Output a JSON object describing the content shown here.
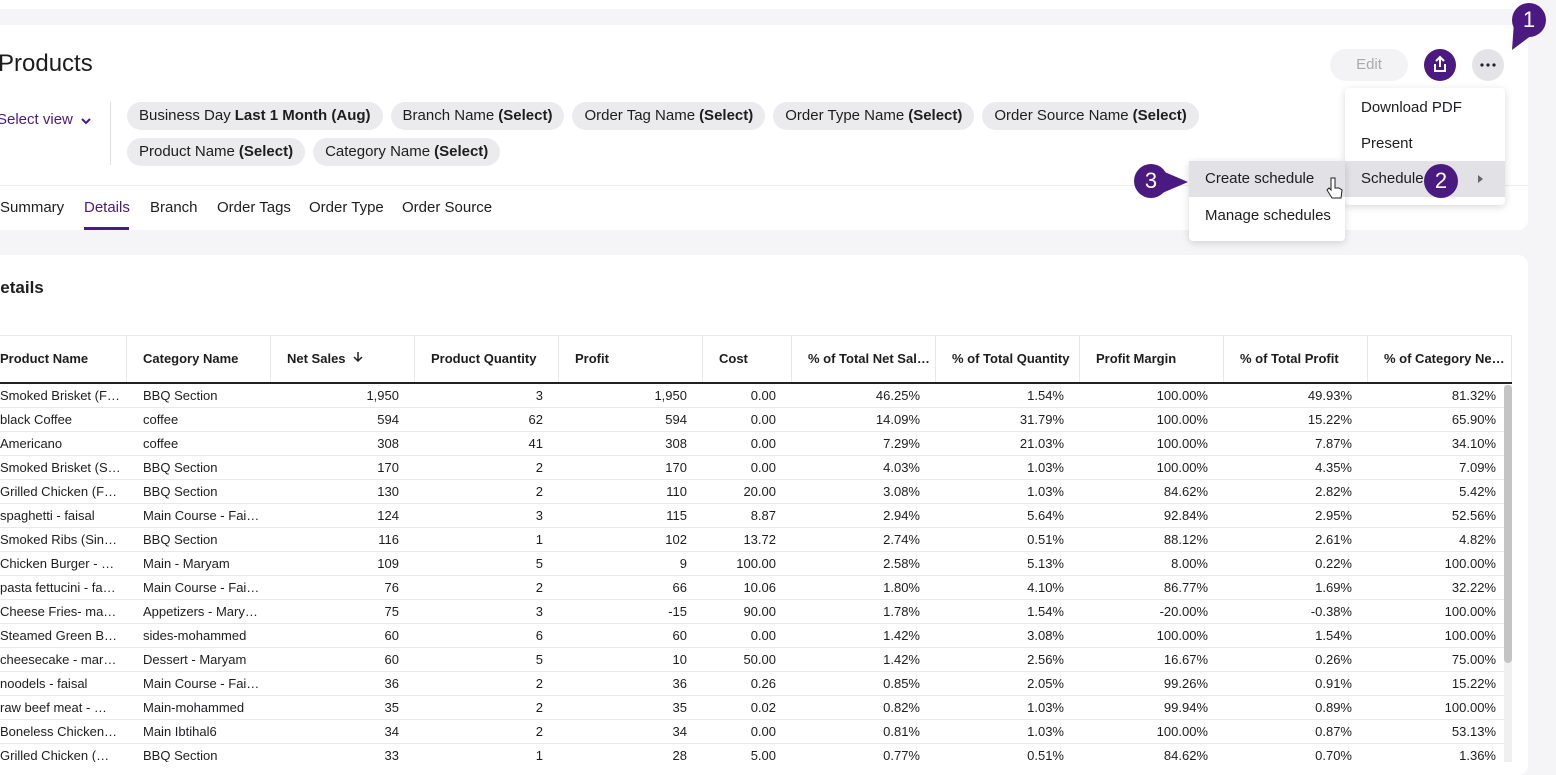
{
  "header": {
    "title": "Products",
    "edit": "Edit",
    "select_view": "Select view"
  },
  "filters": [
    {
      "label": "Business Day",
      "value": "Last 1 Month (Aug)"
    },
    {
      "label": "Branch Name",
      "value": "(Select)"
    },
    {
      "label": "Order Tag Name",
      "value": "(Select)"
    },
    {
      "label": "Order Type Name",
      "value": "(Select)"
    },
    {
      "label": "Order Source Name",
      "value": "(Select)"
    },
    {
      "label": "Product Name",
      "value": "(Select)"
    },
    {
      "label": "Category Name",
      "value": "(Select)"
    }
  ],
  "tabs": [
    "Summary",
    "Details",
    "Branch",
    "Order Tags",
    "Order Type",
    "Order Source"
  ],
  "menu": {
    "items": [
      "Download PDF",
      "Present",
      "Schedule"
    ],
    "submenu": [
      "Create schedule",
      "Manage schedules"
    ]
  },
  "callouts": [
    "1",
    "2",
    "3"
  ],
  "section_title": "Details",
  "table": {
    "columns": [
      "Product Name",
      "Category Name",
      "Net Sales",
      "Product Quantity",
      "Profit",
      "Cost",
      "% of Total Net Sal…",
      "% of Total Quantity",
      "Profit Margin",
      "% of Total Profit",
      "% of Category Ne…"
    ],
    "rows": [
      [
        "Smoked Brisket (F…",
        "BBQ Section",
        "1,950",
        "3",
        "1,950",
        "0.00",
        "46.25%",
        "1.54%",
        "100.00%",
        "49.93%",
        "81.32%"
      ],
      [
        "black Coffee",
        "coffee",
        "594",
        "62",
        "594",
        "0.00",
        "14.09%",
        "31.79%",
        "100.00%",
        "15.22%",
        "65.90%"
      ],
      [
        "Americano",
        "coffee",
        "308",
        "41",
        "308",
        "0.00",
        "7.29%",
        "21.03%",
        "100.00%",
        "7.87%",
        "34.10%"
      ],
      [
        "Smoked Brisket (S…",
        "BBQ Section",
        "170",
        "2",
        "170",
        "0.00",
        "4.03%",
        "1.03%",
        "100.00%",
        "4.35%",
        "7.09%"
      ],
      [
        "Grilled Chicken (F…",
        "BBQ Section",
        "130",
        "2",
        "110",
        "20.00",
        "3.08%",
        "1.03%",
        "84.62%",
        "2.82%",
        "5.42%"
      ],
      [
        "spaghetti - faisal",
        "Main Course - Fai…",
        "124",
        "3",
        "115",
        "8.87",
        "2.94%",
        "5.64%",
        "92.84%",
        "2.95%",
        "52.56%"
      ],
      [
        "Smoked Ribs (Sin…",
        "BBQ Section",
        "116",
        "1",
        "102",
        "13.72",
        "2.74%",
        "0.51%",
        "88.12%",
        "2.61%",
        "4.82%"
      ],
      [
        "Chicken Burger - …",
        "Main - Maryam",
        "109",
        "5",
        "9",
        "100.00",
        "2.58%",
        "5.13%",
        "8.00%",
        "0.22%",
        "100.00%"
      ],
      [
        "pasta fettucini - fa…",
        "Main Course - Fai…",
        "76",
        "2",
        "66",
        "10.06",
        "1.80%",
        "4.10%",
        "86.77%",
        "1.69%",
        "32.22%"
      ],
      [
        "Cheese Fries- ma…",
        "Appetizers - Mary…",
        "75",
        "3",
        "-15",
        "90.00",
        "1.78%",
        "1.54%",
        "-20.00%",
        "-0.38%",
        "100.00%"
      ],
      [
        "Steamed Green B…",
        "sides-mohammed",
        "60",
        "6",
        "60",
        "0.00",
        "1.42%",
        "3.08%",
        "100.00%",
        "1.54%",
        "100.00%"
      ],
      [
        "cheesecake - mar…",
        "Dessert - Maryam",
        "60",
        "5",
        "10",
        "50.00",
        "1.42%",
        "2.56%",
        "16.67%",
        "0.26%",
        "75.00%"
      ],
      [
        "noodels - faisal",
        "Main Course - Fai…",
        "36",
        "2",
        "36",
        "0.26",
        "0.85%",
        "2.05%",
        "99.26%",
        "0.91%",
        "15.22%"
      ],
      [
        "raw beef meat - …",
        "Main-mohammed",
        "35",
        "2",
        "35",
        "0.02",
        "0.82%",
        "1.03%",
        "99.94%",
        "0.89%",
        "100.00%"
      ],
      [
        "Boneless Chicken…",
        "Main Ibtihal6",
        "34",
        "2",
        "34",
        "0.00",
        "0.81%",
        "1.03%",
        "100.00%",
        "0.87%",
        "53.13%"
      ],
      [
        "Grilled Chicken (…",
        "BBQ Section",
        "33",
        "1",
        "28",
        "5.00",
        "0.77%",
        "0.51%",
        "84.62%",
        "0.70%",
        "1.36%"
      ]
    ]
  }
}
